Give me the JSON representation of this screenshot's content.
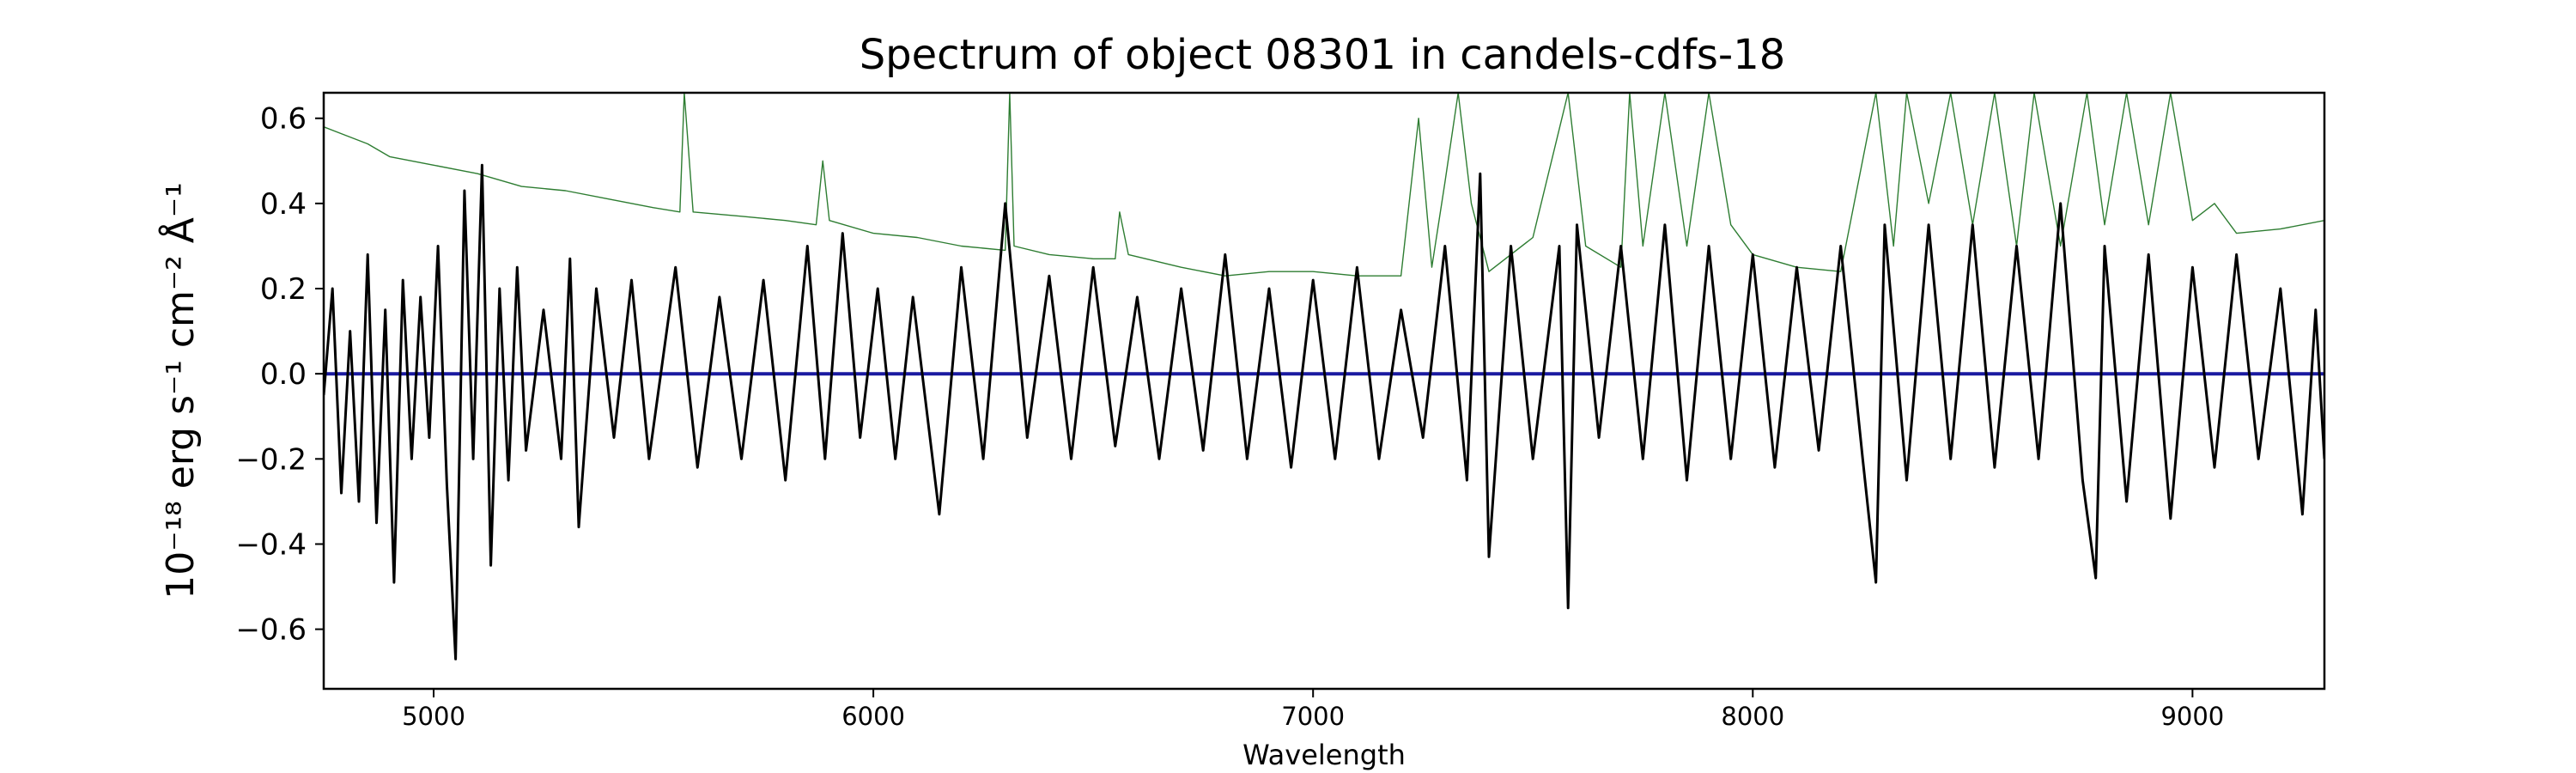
{
  "chart_data": {
    "type": "line",
    "title": "Spectrum of object 08301 in candels-cdfs-18",
    "xlabel": "Wavelength",
    "ylabel": "10⁻¹⁸ erg s⁻¹ cm⁻² Å⁻¹",
    "xlim": [
      4750,
      9300
    ],
    "ylim": [
      -0.74,
      0.66
    ],
    "x_ticks": [
      5000,
      6000,
      7000,
      8000,
      9000
    ],
    "y_ticks": [
      -0.6,
      -0.4,
      -0.2,
      0.0,
      0.2,
      0.4,
      0.6
    ],
    "y_tick_labels": [
      "−0.6",
      "−0.4",
      "−0.2",
      "0.0",
      "0.2",
      "0.4",
      "0.6"
    ],
    "grid": false,
    "series": [
      {
        "key": "error",
        "color": "#2e7d32",
        "line_width": 1.4,
        "points": [
          [
            4750,
            0.58
          ],
          [
            4800,
            0.56
          ],
          [
            4850,
            0.54
          ],
          [
            4900,
            0.51
          ],
          [
            5000,
            0.49
          ],
          [
            5100,
            0.47
          ],
          [
            5200,
            0.44
          ],
          [
            5300,
            0.43
          ],
          [
            5400,
            0.41
          ],
          [
            5500,
            0.39
          ],
          [
            5560,
            0.38
          ],
          [
            5570,
            0.66
          ],
          [
            5590,
            0.38
          ],
          [
            5700,
            0.37
          ],
          [
            5800,
            0.36
          ],
          [
            5870,
            0.35
          ],
          [
            5885,
            0.5
          ],
          [
            5900,
            0.36
          ],
          [
            6000,
            0.33
          ],
          [
            6100,
            0.32
          ],
          [
            6200,
            0.3
          ],
          [
            6300,
            0.29
          ],
          [
            6310,
            0.66
          ],
          [
            6320,
            0.3
          ],
          [
            6400,
            0.28
          ],
          [
            6500,
            0.27
          ],
          [
            6550,
            0.27
          ],
          [
            6560,
            0.38
          ],
          [
            6580,
            0.28
          ],
          [
            6700,
            0.25
          ],
          [
            6800,
            0.23
          ],
          [
            6900,
            0.24
          ],
          [
            7000,
            0.24
          ],
          [
            7100,
            0.23
          ],
          [
            7200,
            0.23
          ],
          [
            7240,
            0.6
          ],
          [
            7270,
            0.25
          ],
          [
            7300,
            0.45
          ],
          [
            7330,
            0.66
          ],
          [
            7360,
            0.4
          ],
          [
            7400,
            0.24
          ],
          [
            7500,
            0.32
          ],
          [
            7580,
            0.66
          ],
          [
            7620,
            0.3
          ],
          [
            7700,
            0.25
          ],
          [
            7720,
            0.66
          ],
          [
            7750,
            0.3
          ],
          [
            7800,
            0.66
          ],
          [
            7850,
            0.3
          ],
          [
            7900,
            0.66
          ],
          [
            7950,
            0.35
          ],
          [
            8000,
            0.28
          ],
          [
            8100,
            0.25
          ],
          [
            8200,
            0.24
          ],
          [
            8280,
            0.66
          ],
          [
            8320,
            0.3
          ],
          [
            8350,
            0.66
          ],
          [
            8400,
            0.4
          ],
          [
            8450,
            0.66
          ],
          [
            8500,
            0.35
          ],
          [
            8550,
            0.66
          ],
          [
            8600,
            0.3
          ],
          [
            8640,
            0.66
          ],
          [
            8700,
            0.3
          ],
          [
            8760,
            0.66
          ],
          [
            8800,
            0.35
          ],
          [
            8850,
            0.66
          ],
          [
            8900,
            0.35
          ],
          [
            8950,
            0.66
          ],
          [
            9000,
            0.36
          ],
          [
            9050,
            0.4
          ],
          [
            9100,
            0.33
          ],
          [
            9200,
            0.34
          ],
          [
            9300,
            0.36
          ]
        ]
      },
      {
        "key": "model",
        "color": "#1a1aa0",
        "line_width": 4,
        "points": [
          [
            4750,
            0.0
          ],
          [
            9300,
            0.0
          ]
        ]
      },
      {
        "key": "flux",
        "color": "#000000",
        "line_width": 3,
        "points": [
          [
            4750,
            -0.05
          ],
          [
            4770,
            0.2
          ],
          [
            4790,
            -0.28
          ],
          [
            4810,
            0.1
          ],
          [
            4830,
            -0.3
          ],
          [
            4850,
            0.28
          ],
          [
            4870,
            -0.35
          ],
          [
            4890,
            0.15
          ],
          [
            4910,
            -0.49
          ],
          [
            4930,
            0.22
          ],
          [
            4950,
            -0.2
          ],
          [
            4970,
            0.18
          ],
          [
            4990,
            -0.15
          ],
          [
            5010,
            0.3
          ],
          [
            5030,
            -0.26
          ],
          [
            5050,
            -0.67
          ],
          [
            5070,
            0.43
          ],
          [
            5090,
            -0.2
          ],
          [
            5110,
            0.49
          ],
          [
            5130,
            -0.45
          ],
          [
            5150,
            0.2
          ],
          [
            5170,
            -0.25
          ],
          [
            5190,
            0.25
          ],
          [
            5210,
            -0.18
          ],
          [
            5250,
            0.15
          ],
          [
            5290,
            -0.2
          ],
          [
            5310,
            0.27
          ],
          [
            5330,
            -0.36
          ],
          [
            5370,
            0.2
          ],
          [
            5410,
            -0.15
          ],
          [
            5450,
            0.22
          ],
          [
            5490,
            -0.2
          ],
          [
            5550,
            0.25
          ],
          [
            5600,
            -0.22
          ],
          [
            5650,
            0.18
          ],
          [
            5700,
            -0.2
          ],
          [
            5750,
            0.22
          ],
          [
            5800,
            -0.25
          ],
          [
            5850,
            0.3
          ],
          [
            5890,
            -0.2
          ],
          [
            5930,
            0.33
          ],
          [
            5970,
            -0.15
          ],
          [
            6010,
            0.2
          ],
          [
            6050,
            -0.2
          ],
          [
            6090,
            0.18
          ],
          [
            6150,
            -0.33
          ],
          [
            6200,
            0.25
          ],
          [
            6250,
            -0.2
          ],
          [
            6300,
            0.4
          ],
          [
            6350,
            -0.15
          ],
          [
            6400,
            0.23
          ],
          [
            6450,
            -0.2
          ],
          [
            6500,
            0.25
          ],
          [
            6550,
            -0.17
          ],
          [
            6600,
            0.18
          ],
          [
            6650,
            -0.2
          ],
          [
            6700,
            0.2
          ],
          [
            6750,
            -0.18
          ],
          [
            6800,
            0.28
          ],
          [
            6850,
            -0.2
          ],
          [
            6900,
            0.2
          ],
          [
            6950,
            -0.22
          ],
          [
            7000,
            0.22
          ],
          [
            7050,
            -0.2
          ],
          [
            7100,
            0.25
          ],
          [
            7150,
            -0.2
          ],
          [
            7200,
            0.15
          ],
          [
            7250,
            -0.15
          ],
          [
            7300,
            0.3
          ],
          [
            7350,
            -0.25
          ],
          [
            7380,
            0.47
          ],
          [
            7400,
            -0.43
          ],
          [
            7450,
            0.3
          ],
          [
            7500,
            -0.2
          ],
          [
            7560,
            0.3
          ],
          [
            7580,
            -0.55
          ],
          [
            7600,
            0.35
          ],
          [
            7650,
            -0.15
          ],
          [
            7700,
            0.3
          ],
          [
            7750,
            -0.2
          ],
          [
            7800,
            0.35
          ],
          [
            7850,
            -0.25
          ],
          [
            7900,
            0.3
          ],
          [
            7950,
            -0.2
          ],
          [
            8000,
            0.28
          ],
          [
            8050,
            -0.22
          ],
          [
            8100,
            0.25
          ],
          [
            8150,
            -0.18
          ],
          [
            8200,
            0.3
          ],
          [
            8250,
            -0.2
          ],
          [
            8280,
            -0.49
          ],
          [
            8300,
            0.35
          ],
          [
            8350,
            -0.25
          ],
          [
            8400,
            0.35
          ],
          [
            8450,
            -0.2
          ],
          [
            8500,
            0.35
          ],
          [
            8550,
            -0.22
          ],
          [
            8600,
            0.3
          ],
          [
            8650,
            -0.2
          ],
          [
            8700,
            0.4
          ],
          [
            8750,
            -0.25
          ],
          [
            8780,
            -0.48
          ],
          [
            8800,
            0.3
          ],
          [
            8850,
            -0.3
          ],
          [
            8900,
            0.28
          ],
          [
            8950,
            -0.34
          ],
          [
            9000,
            0.25
          ],
          [
            9050,
            -0.22
          ],
          [
            9100,
            0.28
          ],
          [
            9150,
            -0.2
          ],
          [
            9200,
            0.2
          ],
          [
            9250,
            -0.33
          ],
          [
            9280,
            0.15
          ],
          [
            9300,
            -0.2
          ]
        ]
      }
    ]
  }
}
